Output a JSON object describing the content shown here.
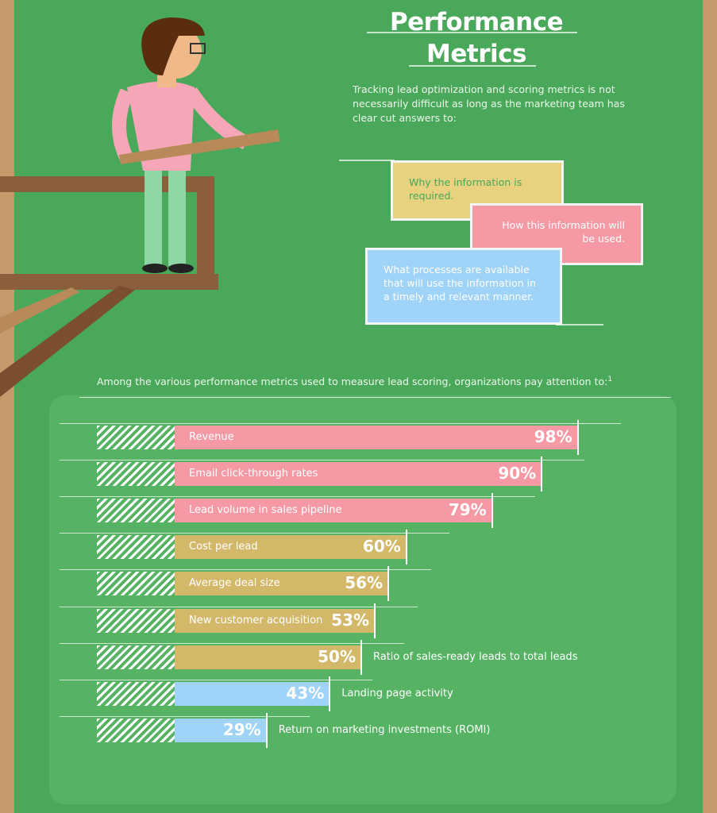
{
  "header": {
    "title_line1": "Performance",
    "title_line2": "Metrics",
    "intro": "Tracking lead optimization and scoring metrics is not necessarily difficult as long as the marketing team has clear cut answers to:"
  },
  "cards": [
    {
      "text": "Why the information is required.",
      "color": "#e8d27f"
    },
    {
      "text": "How this information will be used.",
      "color": "#f59aa5"
    },
    {
      "text": "What processes are available that will use the information in a timely and relevant manner.",
      "color": "#9fd3f7"
    }
  ],
  "chart_data": {
    "type": "bar",
    "title": "Among the various performance metrics used to measure lead scoring, organizations pay attention to:",
    "footnote": "1",
    "categories": [
      "Revenue",
      "Email click-through rates",
      "Lead volume in sales pipeline",
      "Cost per lead",
      "Average deal size",
      "New customer acquisition",
      "Ratio of sales-ready leads to total leads",
      "Landing page activity",
      "Return on marketing investments (ROMI)"
    ],
    "values": [
      98,
      90,
      79,
      60,
      56,
      53,
      50,
      43,
      29
    ],
    "labels": [
      "98%",
      "90%",
      "79%",
      "60%",
      "56%",
      "53%",
      "50%",
      "43%",
      "29%"
    ],
    "colors": [
      "#f59aa5",
      "#f59aa5",
      "#f59aa5",
      "#d3b869",
      "#d3b869",
      "#d3b869",
      "#d3b869",
      "#9fd3f7",
      "#9fd3f7"
    ],
    "label_outside": [
      false,
      false,
      false,
      false,
      false,
      false,
      true,
      true,
      true
    ],
    "unit": "%",
    "xlim": [
      0,
      100
    ]
  }
}
